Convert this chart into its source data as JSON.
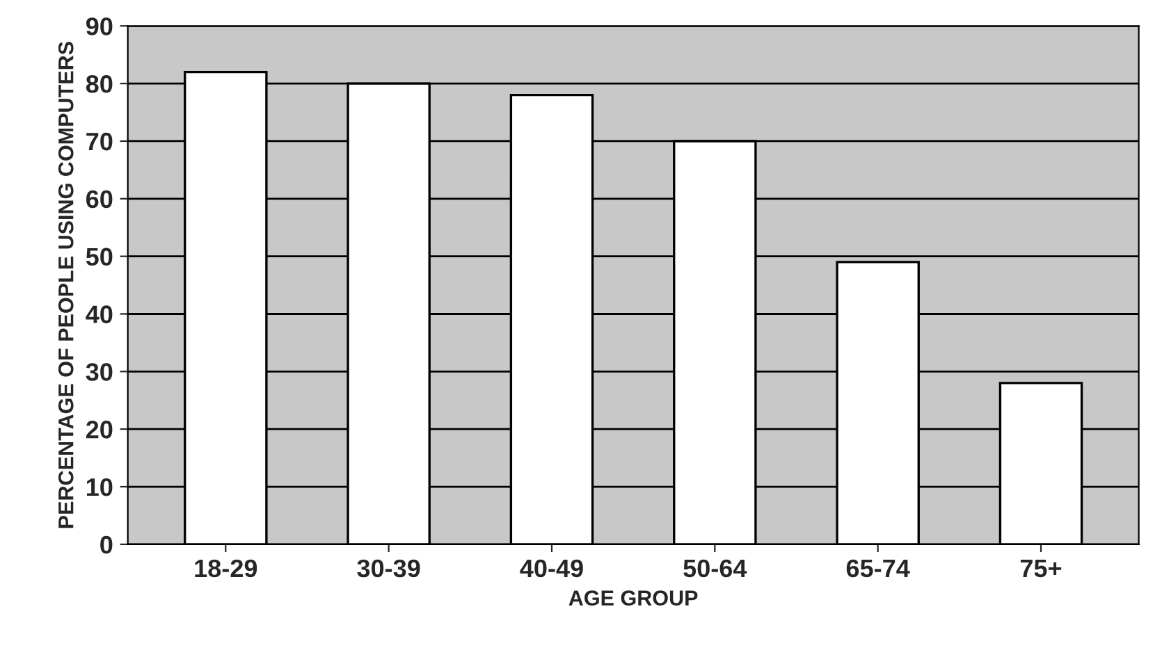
{
  "chart_data": {
    "type": "bar",
    "xlabel": "AGE GROUP",
    "ylabel": "PERCENTAGE OF PEOPLE USING COMPUTERS",
    "categories": [
      "18-29",
      "30-39",
      "40-49",
      "50-64",
      "65-74",
      "75+"
    ],
    "values": [
      82,
      80,
      78,
      70,
      49,
      28
    ],
    "color": "#ffffff",
    "ylim": [
      0,
      90
    ],
    "yticks": [
      0,
      10,
      20,
      30,
      40,
      50,
      60,
      70,
      80,
      90
    ],
    "grid": "y"
  }
}
